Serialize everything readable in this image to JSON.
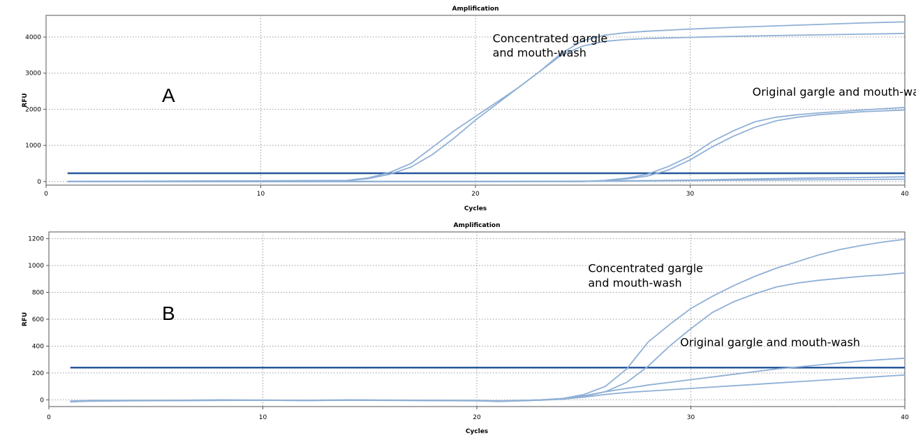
{
  "chart_data": [
    {
      "type": "line",
      "panel_label": "A",
      "title": "Amplification",
      "xlabel": "Cycles",
      "ylabel": "RFU",
      "xlim": [
        0,
        40
      ],
      "ylim": [
        -100,
        4600
      ],
      "xticks": [
        0,
        10,
        20,
        30,
        40
      ],
      "yticks": [
        0,
        1000,
        2000,
        3000,
        4000
      ],
      "grid": true,
      "threshold": 230,
      "annotations": [
        {
          "lines": [
            "Concentrated gargle",
            "and mouth-wash"
          ],
          "x": 20.8,
          "y": 3860
        },
        {
          "lines": [
            "Original gargle and mouth-wash"
          ],
          "x": 32.9,
          "y": 2380
        }
      ],
      "series": [
        {
          "x": [
            1,
            14,
            15,
            16,
            17,
            18,
            19,
            20,
            21,
            22,
            23,
            24,
            25,
            26,
            27,
            28,
            30,
            32,
            35,
            38,
            40
          ],
          "y": [
            0,
            30,
            100,
            250,
            500,
            950,
            1400,
            1800,
            2200,
            2600,
            3050,
            3550,
            3900,
            4050,
            4120,
            4160,
            4220,
            4270,
            4330,
            4390,
            4420
          ]
        },
        {
          "x": [
            1,
            14,
            15,
            16,
            17,
            18,
            19,
            20,
            21,
            22,
            23,
            24,
            25,
            26,
            27,
            28,
            30,
            32,
            35,
            38,
            40
          ],
          "y": [
            0,
            20,
            80,
            200,
            400,
            750,
            1200,
            1700,
            2150,
            2600,
            3050,
            3500,
            3750,
            3880,
            3930,
            3960,
            3990,
            4020,
            4050,
            4080,
            4100
          ]
        },
        {
          "x": [
            1,
            25,
            26,
            27,
            28,
            29,
            30,
            31,
            32,
            33,
            34,
            35,
            36,
            38,
            40
          ],
          "y": [
            0,
            0,
            30,
            90,
            200,
            420,
            700,
            1100,
            1400,
            1650,
            1780,
            1850,
            1900,
            1980,
            2050
          ]
        },
        {
          "x": [
            1,
            25,
            26,
            27,
            28,
            29,
            30,
            31,
            32,
            33,
            34,
            35,
            36,
            38,
            40
          ],
          "y": [
            0,
            0,
            20,
            70,
            150,
            320,
            600,
            950,
            1250,
            1500,
            1680,
            1780,
            1850,
            1930,
            1980
          ]
        },
        {
          "x": [
            1,
            20,
            25,
            28,
            30,
            32,
            35,
            38,
            40
          ],
          "y": [
            0,
            0,
            10,
            25,
            40,
            60,
            90,
            110,
            130
          ]
        },
        {
          "x": [
            1,
            20,
            25,
            28,
            30,
            32,
            35,
            38,
            40
          ],
          "y": [
            0,
            0,
            5,
            15,
            25,
            35,
            45,
            55,
            65
          ]
        }
      ]
    },
    {
      "type": "line",
      "panel_label": "B",
      "title": "Amplification",
      "xlabel": "Cycles",
      "ylabel": "RFU",
      "xlim": [
        0,
        40
      ],
      "ylim": [
        -50,
        1250
      ],
      "xticks": [
        0,
        10,
        20,
        30,
        40
      ],
      "yticks": [
        0,
        200,
        400,
        600,
        800,
        1000,
        1200
      ],
      "grid": true,
      "threshold": 240,
      "annotations": [
        {
          "lines": [
            "Concentrated gargle",
            "and mouth-wash"
          ],
          "x": 25.2,
          "y": 950
        },
        {
          "lines": [
            "Original gargle and mouth-wash"
          ],
          "x": 29.5,
          "y": 400
        }
      ],
      "series": [
        {
          "x": [
            1,
            2,
            4,
            6,
            8,
            10,
            12,
            14,
            16,
            18,
            20,
            21,
            22,
            23,
            24,
            25,
            26,
            27,
            28,
            29,
            30,
            31,
            32,
            33,
            34,
            35,
            36,
            37,
            38,
            39,
            40
          ],
          "y": [
            -10,
            -5,
            -5,
            -3,
            0,
            -2,
            -3,
            0,
            -2,
            -3,
            -5,
            -10,
            -5,
            0,
            10,
            40,
            100,
            230,
            430,
            560,
            680,
            770,
            850,
            920,
            980,
            1030,
            1080,
            1120,
            1150,
            1175,
            1195
          ]
        },
        {
          "x": [
            1,
            2,
            4,
            6,
            8,
            10,
            12,
            14,
            16,
            18,
            20,
            21,
            22,
            23,
            24,
            25,
            26,
            27,
            28,
            29,
            30,
            31,
            32,
            33,
            34,
            35,
            36,
            37,
            38,
            39,
            40
          ],
          "y": [
            -15,
            -8,
            -5,
            -5,
            -2,
            -3,
            -5,
            -2,
            -3,
            -5,
            -8,
            -12,
            -8,
            -2,
            5,
            25,
            60,
            130,
            250,
            400,
            530,
            650,
            730,
            790,
            840,
            870,
            890,
            905,
            920,
            930,
            945
          ]
        },
        {
          "x": [
            1,
            2,
            4,
            6,
            8,
            10,
            12,
            14,
            16,
            18,
            20,
            21,
            22,
            23,
            24,
            25,
            26,
            27,
            28,
            29,
            30,
            31,
            32,
            33,
            34,
            35,
            36,
            37,
            38,
            39,
            40
          ],
          "y": [
            -10,
            -8,
            -5,
            -5,
            -3,
            -2,
            -4,
            -2,
            -3,
            -5,
            -5,
            -8,
            -5,
            0,
            10,
            30,
            60,
            85,
            110,
            130,
            150,
            170,
            190,
            210,
            230,
            245,
            260,
            275,
            290,
            300,
            310
          ]
        },
        {
          "x": [
            1,
            2,
            4,
            6,
            8,
            10,
            12,
            14,
            16,
            18,
            20,
            21,
            22,
            23,
            24,
            25,
            26,
            27,
            28,
            29,
            30,
            31,
            32,
            33,
            34,
            35,
            36,
            37,
            38,
            39,
            40
          ],
          "y": [
            -12,
            -10,
            -7,
            -6,
            -4,
            -3,
            -5,
            -3,
            -4,
            -6,
            -6,
            -10,
            -6,
            -2,
            5,
            20,
            40,
            55,
            65,
            75,
            85,
            95,
            105,
            115,
            125,
            135,
            145,
            155,
            165,
            175,
            185
          ]
        }
      ]
    }
  ]
}
